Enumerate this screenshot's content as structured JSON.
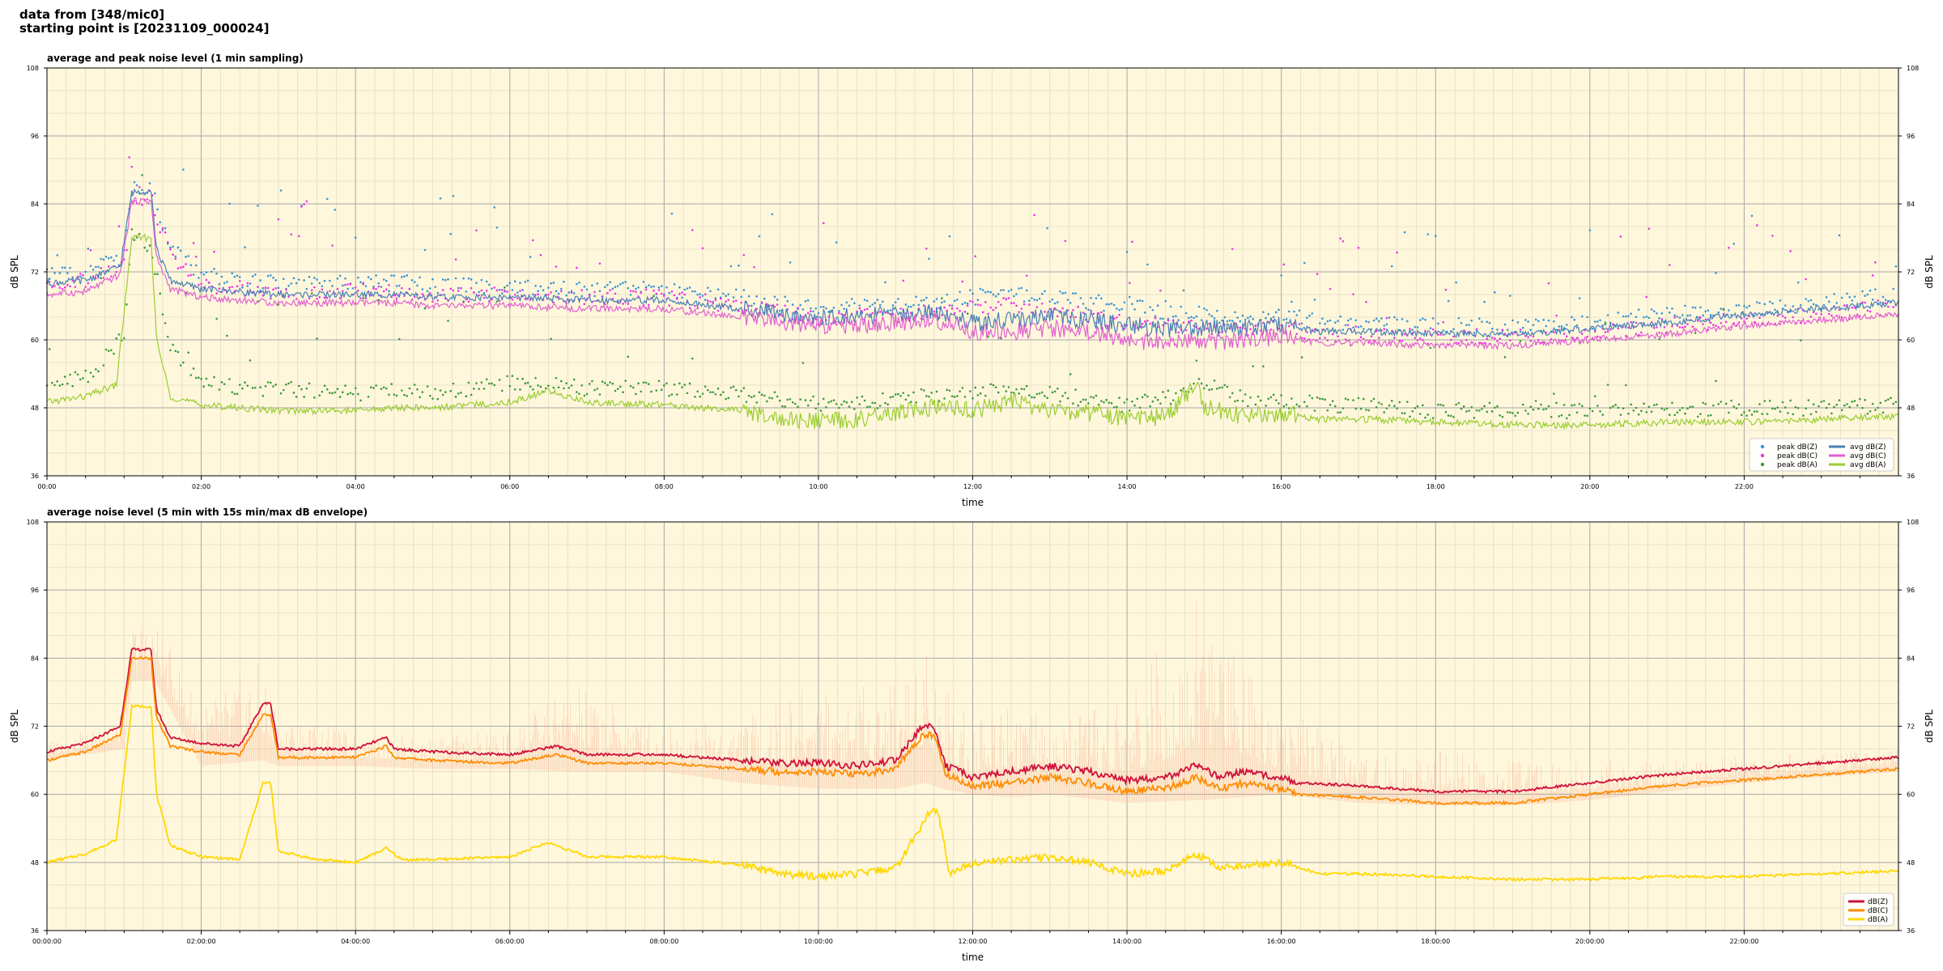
{
  "header": {
    "line1": "data from [348/mic0]",
    "line2": "starting point is [20231109_000024]"
  },
  "colors": {
    "plot_bg": "#fff7dc",
    "grid_major": "#a6a6a6",
    "grid_minor": "#e3dcc0",
    "peak_z": "#3a95d4",
    "peak_c": "#f032e6",
    "peak_a": "#3a9a3a",
    "avg_z": "#4a7fb5",
    "avg_c": "#e060d0",
    "avg_a": "#9acd32",
    "z5": "#d0103a",
    "c5": "#ff8c00",
    "a5": "#ffd700",
    "envelope": "#f4a58a"
  },
  "chart_data": [
    {
      "type": "line",
      "title": "average and peak noise level (1 min sampling)",
      "xlabel": "time",
      "ylabel": "dB SPL",
      "ylim": [
        36,
        108
      ],
      "xlim_hours": [
        0,
        24
      ],
      "y_ticks": [
        "36",
        "48",
        "60",
        "72",
        "84",
        "96",
        "108"
      ],
      "x_ticks": [
        "00:00",
        "02:00",
        "04:00",
        "06:00",
        "08:00",
        "10:00",
        "12:00",
        "14:00",
        "16:00",
        "18:00",
        "20:00",
        "22:00"
      ],
      "grid": true,
      "legend_position": "bottom-right",
      "series": [
        {
          "name": "peak dB(Z)",
          "style": "dots",
          "x": [
            0,
            0.5,
            1,
            1.1,
            1.35,
            1.6,
            2,
            2.5,
            3,
            3.5,
            4,
            4.5,
            5,
            6,
            7,
            8,
            9,
            9.5,
            10,
            10.5,
            11,
            11.5,
            12,
            12.5,
            13,
            13.5,
            14,
            14.5,
            15,
            15.5,
            16,
            16.5,
            17,
            18,
            19,
            20,
            21,
            22,
            23,
            24
          ],
          "y": [
            71,
            71.5,
            74,
            86,
            86,
            76,
            71,
            70,
            69.5,
            69.5,
            69.5,
            69.5,
            69,
            69,
            68.5,
            68.5,
            67,
            66,
            65,
            65.5,
            65.5,
            66,
            67,
            68,
            67,
            66,
            66,
            64,
            64,
            63,
            64,
            62.5,
            62.5,
            62,
            62,
            62.5,
            64,
            65,
            66,
            67.5
          ]
        },
        {
          "name": "peak dB(C)",
          "style": "dots",
          "x": [
            0,
            0.5,
            1,
            1.1,
            1.35,
            1.6,
            2,
            2.5,
            3,
            3.5,
            4,
            4.5,
            5,
            6,
            7,
            8,
            9,
            9.5,
            10,
            10.5,
            11,
            11.5,
            12,
            12.5,
            13,
            13.5,
            14,
            14.5,
            15,
            15.5,
            16,
            16.5,
            17,
            18,
            19,
            20,
            21,
            22,
            23,
            24
          ],
          "y": [
            69.5,
            70,
            72.5,
            84.5,
            84.5,
            74.5,
            69.5,
            68.5,
            68,
            68,
            68,
            68,
            67.5,
            67.5,
            67,
            67,
            65.5,
            64.5,
            63.5,
            63.5,
            64,
            64.5,
            65,
            66,
            65,
            64,
            62.5,
            62,
            62,
            61,
            62,
            60.5,
            60.5,
            60,
            60,
            60.5,
            62,
            63,
            64,
            65.5
          ]
        },
        {
          "name": "peak dB(A)",
          "style": "dots",
          "x": [
            0,
            0.5,
            1,
            1.1,
            1.35,
            1.6,
            2,
            2.5,
            3,
            3.5,
            4,
            4.5,
            5,
            6,
            7,
            8,
            9,
            9.5,
            10,
            10.5,
            11,
            11.5,
            12,
            12.5,
            13,
            13.5,
            14,
            14.5,
            15,
            15.5,
            16,
            16.5,
            17,
            18,
            19,
            20,
            21,
            22,
            23,
            24
          ],
          "y": [
            52,
            53,
            60,
            78,
            76,
            58,
            52,
            51,
            51,
            50.5,
            50,
            51,
            50,
            52,
            51,
            51,
            50,
            49,
            48,
            48,
            49,
            50,
            50,
            51,
            50,
            49,
            48,
            49,
            52,
            49,
            49,
            48,
            48,
            47,
            47,
            47,
            47,
            47.5,
            47.5,
            48
          ]
        },
        {
          "name": "avg dB(Z)",
          "style": "line",
          "x": [
            0,
            0.5,
            0.95,
            1.1,
            1.35,
            1.42,
            1.6,
            2,
            2.5,
            3,
            3.5,
            4,
            4.5,
            5,
            6,
            7,
            8,
            9,
            9.5,
            10,
            10.5,
            11,
            11.5,
            12,
            12.5,
            13,
            13.5,
            14,
            14.5,
            15,
            15.5,
            16,
            16.5,
            17,
            18,
            19,
            20,
            21,
            22,
            23,
            24
          ],
          "y": [
            70,
            70.5,
            73,
            86,
            86.5,
            76,
            70.5,
            69,
            68.5,
            68,
            68,
            68,
            68,
            67.5,
            67.5,
            67,
            67,
            65.5,
            64.5,
            64,
            64,
            64.5,
            65,
            63,
            63.5,
            64,
            63.5,
            62.5,
            62,
            62,
            62,
            62.5,
            61.5,
            61.5,
            61,
            61,
            62,
            63,
            64.5,
            65.5,
            66.5
          ]
        },
        {
          "name": "avg dB(C)",
          "style": "line",
          "x": [
            0,
            0.5,
            0.95,
            1.1,
            1.35,
            1.42,
            1.6,
            2,
            2.5,
            3,
            3.5,
            4,
            4.5,
            5,
            6,
            7,
            8,
            9,
            9.5,
            10,
            10.5,
            11,
            11.5,
            12,
            12.5,
            13,
            13.5,
            14,
            14.5,
            15,
            15.5,
            16,
            16.5,
            17,
            18,
            19,
            20,
            21,
            22,
            23,
            24
          ],
          "y": [
            68,
            68.5,
            71.5,
            84.5,
            84.5,
            74.5,
            69,
            67.5,
            67,
            66.5,
            66.5,
            66.5,
            66.5,
            66,
            66,
            65.5,
            65.5,
            64,
            63,
            62.5,
            62.5,
            63,
            63.5,
            61.5,
            61.5,
            62,
            61.5,
            60,
            59.5,
            59.5,
            60,
            60.5,
            59.5,
            59.5,
            59,
            59,
            60,
            61,
            62.5,
            63.5,
            64.5
          ]
        },
        {
          "name": "avg dB(A)",
          "style": "line",
          "x": [
            0,
            0.5,
            0.9,
            1.1,
            1.35,
            1.42,
            1.6,
            2,
            2.5,
            3,
            3.5,
            4,
            4.5,
            5,
            6,
            6.5,
            7,
            8,
            9,
            9.5,
            10,
            10.5,
            11,
            11.5,
            12,
            12.5,
            13,
            13.5,
            14,
            14.5,
            14.9,
            15,
            15.5,
            16,
            16.5,
            17,
            18,
            19,
            20,
            21,
            22,
            23,
            24
          ],
          "y": [
            49,
            50,
            52,
            78,
            78,
            60,
            50,
            48.5,
            48,
            47.5,
            47.5,
            47.5,
            48,
            48,
            49,
            51,
            49,
            48.5,
            47.5,
            46,
            45.5,
            46,
            47,
            48,
            47.5,
            49,
            47.5,
            47,
            46,
            46.5,
            52,
            48,
            46.5,
            47,
            46,
            46,
            45.5,
            45,
            45,
            45.5,
            45.5,
            46,
            46.5
          ]
        }
      ]
    },
    {
      "type": "line",
      "title": "average noise level (5 min with 15s min/max dB envelope)",
      "xlabel": "time",
      "ylabel": "dB SPL",
      "ylim": [
        36,
        108
      ],
      "xlim_hours": [
        0,
        24
      ],
      "y_ticks": [
        "36",
        "48",
        "60",
        "72",
        "84",
        "96",
        "108"
      ],
      "x_ticks": [
        "00:00:00",
        "02:00:00",
        "04:00:00",
        "06:00:00",
        "08:00:00",
        "10:00:00",
        "12:00:00",
        "14:00:00",
        "16:00:00",
        "18:00:00",
        "20:00:00",
        "22:00:00"
      ],
      "grid": true,
      "legend_position": "bottom-right",
      "envelope": {
        "x": [
          0,
          1,
          1.1,
          1.4,
          2,
          2.8,
          3,
          4,
          5,
          6,
          6.8,
          8,
          9,
          10,
          11,
          11.4,
          11.6,
          12,
          12.5,
          13,
          14,
          15,
          15.5,
          16,
          17,
          18,
          19,
          20,
          21,
          22,
          23,
          24
        ],
        "y_min": [
          66,
          68,
          80,
          80,
          65,
          66,
          65,
          65,
          64.5,
          64.5,
          64,
          64,
          62,
          61,
          61,
          62,
          61,
          60,
          59.5,
          60,
          58.5,
          59,
          59.5,
          60,
          58.5,
          58,
          58,
          59,
          60.5,
          62,
          63,
          64
        ],
        "y_max": [
          69.5,
          73,
          91,
          91,
          76,
          84,
          74,
          71,
          70,
          72,
          80,
          72,
          74,
          80,
          80,
          90,
          80,
          74,
          80,
          72,
          78,
          98,
          90,
          76,
          68,
          68,
          66,
          66,
          66,
          67,
          67.5,
          68
        ]
      },
      "series": [
        {
          "name": "dB(Z)",
          "x": [
            0,
            0.5,
            0.95,
            1.1,
            1.35,
            1.42,
            1.6,
            2,
            2.5,
            2.8,
            2.9,
            3,
            3.5,
            4,
            4.4,
            4.5,
            5,
            6,
            6.6,
            7,
            8,
            9,
            9.5,
            10,
            10.5,
            11,
            11.35,
            11.5,
            11.65,
            12,
            12.5,
            13,
            13.5,
            14,
            14.5,
            14.9,
            15.2,
            15.5,
            16,
            16.2,
            17,
            18,
            19,
            20,
            21,
            22,
            23,
            24
          ],
          "y": [
            67.5,
            69,
            72,
            85.5,
            85.5,
            75,
            70,
            69,
            68.5,
            76,
            76,
            68,
            68,
            68,
            70,
            68,
            67.5,
            67,
            68.5,
            67,
            67,
            66,
            65.5,
            65.5,
            65,
            66,
            72,
            72,
            65,
            63,
            64,
            65,
            64,
            62.5,
            63,
            65,
            63,
            64,
            63,
            62,
            61.5,
            60.5,
            60.5,
            62,
            63.5,
            64.5,
            65.5,
            66.5
          ]
        },
        {
          "name": "dB(C)",
          "x": [
            0,
            0.5,
            0.95,
            1.1,
            1.35,
            1.42,
            1.6,
            2,
            2.5,
            2.8,
            2.9,
            3,
            3.5,
            4,
            4.4,
            4.5,
            5,
            6,
            6.6,
            7,
            8,
            9,
            9.5,
            10,
            10.5,
            11,
            11.35,
            11.5,
            11.65,
            12,
            12.5,
            13,
            13.5,
            14,
            14.5,
            14.9,
            15.2,
            15.5,
            16,
            16.2,
            17,
            18,
            19,
            20,
            21,
            22,
            23,
            24
          ],
          "y": [
            66,
            67.5,
            70.5,
            84,
            84,
            73.5,
            68.5,
            67.5,
            67,
            74,
            74,
            66.5,
            66.5,
            66.5,
            68.5,
            66.5,
            66,
            65.5,
            67,
            65.5,
            65.5,
            64.5,
            64,
            64,
            63.5,
            64.5,
            70.5,
            70.5,
            63.5,
            61.5,
            62,
            63,
            62,
            60.5,
            61,
            63,
            61,
            62,
            61,
            60,
            59.5,
            58.5,
            58.5,
            60,
            61.5,
            62.5,
            63.5,
            64.5
          ]
        },
        {
          "name": "dB(A)",
          "x": [
            0,
            0.5,
            0.9,
            1.1,
            1.35,
            1.42,
            1.6,
            2,
            2.5,
            2.8,
            2.9,
            3,
            3.5,
            4,
            4.4,
            4.6,
            5,
            6,
            6.5,
            7,
            8,
            9,
            9.5,
            10,
            10.5,
            11,
            11.45,
            11.55,
            11.7,
            12,
            12.5,
            13,
            13.5,
            14,
            14.5,
            14.9,
            15.2,
            15.5,
            16,
            16.5,
            17,
            18,
            19,
            20,
            21,
            22,
            23,
            24
          ],
          "y": [
            48,
            49.5,
            52,
            75.5,
            75.5,
            60,
            51,
            49,
            48.5,
            62,
            62,
            50,
            48.5,
            48,
            50.5,
            48.5,
            48.5,
            49,
            51.5,
            49,
            49,
            47.5,
            46,
            45.5,
            46,
            47,
            57,
            57,
            46,
            48,
            48.5,
            49,
            48,
            46,
            46.5,
            49.5,
            47,
            47.5,
            48,
            46,
            46,
            45.5,
            45,
            45,
            45.5,
            45.5,
            46,
            46.5
          ]
        }
      ]
    }
  ]
}
